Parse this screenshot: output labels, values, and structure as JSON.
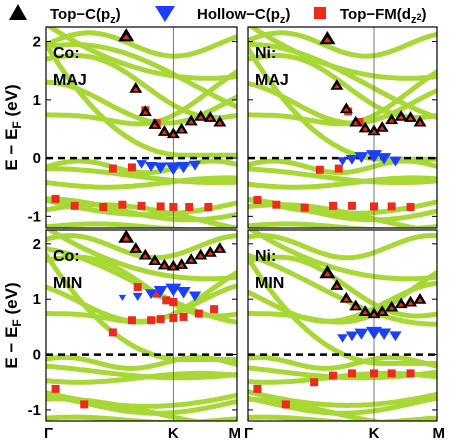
{
  "chart_data": {
    "type": "scatter",
    "legend": {
      "placement": "top",
      "items": [
        {
          "label": "Top−C(p",
          "sub": "z",
          "tail": ")",
          "marker": "triangle-up",
          "color": "#000000"
        },
        {
          "label": "Hollow−C(p",
          "sub": "z",
          "tail": ")",
          "marker": "triangle-down",
          "color": "#1a3fff"
        },
        {
          "label": "Top−FM(d",
          "sub": "z",
          "sub2": "2",
          "tail": ")",
          "marker": "square",
          "color": "#ee2a1c"
        }
      ]
    },
    "ylabel": {
      "main": "E − E",
      "sub": "F",
      "tail": " (eV)"
    },
    "xticks": [
      "Γ",
      "K",
      "M"
    ],
    "x_positions": [
      0,
      0.6667,
      1
    ],
    "ylim": [
      -1.2,
      2.25
    ],
    "yticks": [
      -1,
      0,
      1,
      2
    ],
    "fermi_level": 0,
    "band_color": "#a7d835",
    "panels": [
      {
        "id": "co-maj",
        "label_line1": "Co:",
        "label_line2": "MAJ",
        "top_c": [
          [
            0.42,
            2.1
          ],
          [
            0.47,
            1.2
          ],
          [
            0.52,
            0.8
          ],
          [
            0.57,
            0.58
          ],
          [
            0.62,
            0.46
          ],
          [
            0.6667,
            0.42
          ],
          [
            0.71,
            0.5
          ],
          [
            0.76,
            0.64
          ],
          [
            0.81,
            0.72
          ],
          [
            0.86,
            0.7
          ],
          [
            0.91,
            0.62
          ]
        ],
        "hollow_c": [
          [
            0.5,
            -0.1
          ],
          [
            0.55,
            -0.14
          ],
          [
            0.6,
            -0.16
          ],
          [
            0.6667,
            -0.17
          ],
          [
            0.72,
            -0.15
          ],
          [
            0.78,
            -0.12
          ]
        ],
        "top_fm": [
          [
            0.05,
            -0.7
          ],
          [
            0.15,
            -0.82
          ],
          [
            0.3,
            -0.84
          ],
          [
            0.4,
            -0.8
          ],
          [
            0.5,
            -0.82
          ],
          [
            0.6,
            -0.83
          ],
          [
            0.6667,
            -0.84
          ],
          [
            0.75,
            -0.84
          ],
          [
            0.85,
            -0.84
          ],
          [
            0.35,
            -0.18
          ],
          [
            0.45,
            -0.16
          ],
          [
            0.52,
            0.82
          ],
          [
            0.58,
            0.6
          ]
        ]
      },
      {
        "id": "ni-maj",
        "label_line1": "Ni:",
        "label_line2": "MAJ",
        "top_c": [
          [
            0.42,
            2.05
          ],
          [
            0.47,
            1.25
          ],
          [
            0.52,
            0.85
          ],
          [
            0.57,
            0.62
          ],
          [
            0.62,
            0.52
          ],
          [
            0.6667,
            0.47
          ],
          [
            0.71,
            0.53
          ],
          [
            0.76,
            0.66
          ],
          [
            0.81,
            0.72
          ],
          [
            0.86,
            0.7
          ],
          [
            0.91,
            0.62
          ]
        ],
        "hollow_c": [
          [
            0.5,
            -0.05
          ],
          [
            0.55,
            -0.02
          ],
          [
            0.6,
            0.02
          ],
          [
            0.6667,
            0.04
          ],
          [
            0.72,
            0.0
          ],
          [
            0.78,
            -0.05
          ]
        ],
        "top_fm": [
          [
            0.05,
            -0.72
          ],
          [
            0.15,
            -0.8
          ],
          [
            0.3,
            -0.85
          ],
          [
            0.45,
            -0.82
          ],
          [
            0.55,
            -0.82
          ],
          [
            0.6667,
            -0.83
          ],
          [
            0.76,
            -0.83
          ],
          [
            0.86,
            -0.84
          ],
          [
            0.38,
            -0.2
          ],
          [
            0.48,
            -0.18
          ],
          [
            0.53,
            0.8
          ],
          [
            0.59,
            0.62
          ]
        ]
      },
      {
        "id": "co-min",
        "label_line1": "Co:",
        "label_line2": "MIN",
        "top_c": [
          [
            0.42,
            2.12
          ],
          [
            0.47,
            1.92
          ],
          [
            0.52,
            1.8
          ],
          [
            0.57,
            1.7
          ],
          [
            0.62,
            1.62
          ],
          [
            0.6667,
            1.6
          ],
          [
            0.71,
            1.63
          ],
          [
            0.76,
            1.72
          ],
          [
            0.81,
            1.8
          ],
          [
            0.86,
            1.85
          ],
          [
            0.91,
            1.92
          ]
        ],
        "hollow_c": [
          [
            0.4,
            1.03
          ],
          [
            0.48,
            1.05
          ],
          [
            0.55,
            1.1
          ],
          [
            0.6,
            1.15
          ],
          [
            0.6667,
            1.18
          ],
          [
            0.72,
            1.13
          ],
          [
            0.78,
            1.06
          ]
        ],
        "top_fm": [
          [
            0.05,
            -0.62
          ],
          [
            0.2,
            -0.9
          ],
          [
            0.35,
            0.4
          ],
          [
            0.45,
            0.62
          ],
          [
            0.55,
            0.62
          ],
          [
            0.6,
            0.64
          ],
          [
            0.6667,
            0.66
          ],
          [
            0.72,
            0.68
          ],
          [
            0.8,
            0.74
          ],
          [
            0.88,
            0.82
          ],
          [
            0.48,
            1.22
          ],
          [
            0.58,
            1.1
          ],
          [
            0.63,
            0.98
          ],
          [
            0.6667,
            0.95
          ]
        ]
      },
      {
        "id": "ni-min",
        "label_line1": "Ni:",
        "label_line2": "MIN",
        "top_c": [
          [
            0.42,
            1.48
          ],
          [
            0.47,
            1.25
          ],
          [
            0.52,
            1.02
          ],
          [
            0.57,
            0.88
          ],
          [
            0.62,
            0.78
          ],
          [
            0.6667,
            0.74
          ],
          [
            0.71,
            0.78
          ],
          [
            0.76,
            0.86
          ],
          [
            0.81,
            0.92
          ],
          [
            0.86,
            0.95
          ],
          [
            0.91,
            1.0
          ]
        ],
        "hollow_c": [
          [
            0.5,
            0.3
          ],
          [
            0.55,
            0.34
          ],
          [
            0.6,
            0.38
          ],
          [
            0.6667,
            0.4
          ],
          [
            0.72,
            0.38
          ],
          [
            0.78,
            0.34
          ]
        ],
        "top_fm": [
          [
            0.05,
            -0.62
          ],
          [
            0.2,
            -0.9
          ],
          [
            0.35,
            -0.5
          ],
          [
            0.45,
            -0.38
          ],
          [
            0.55,
            -0.34
          ],
          [
            0.6667,
            -0.34
          ],
          [
            0.76,
            -0.34
          ],
          [
            0.86,
            -0.34
          ]
        ]
      }
    ]
  }
}
